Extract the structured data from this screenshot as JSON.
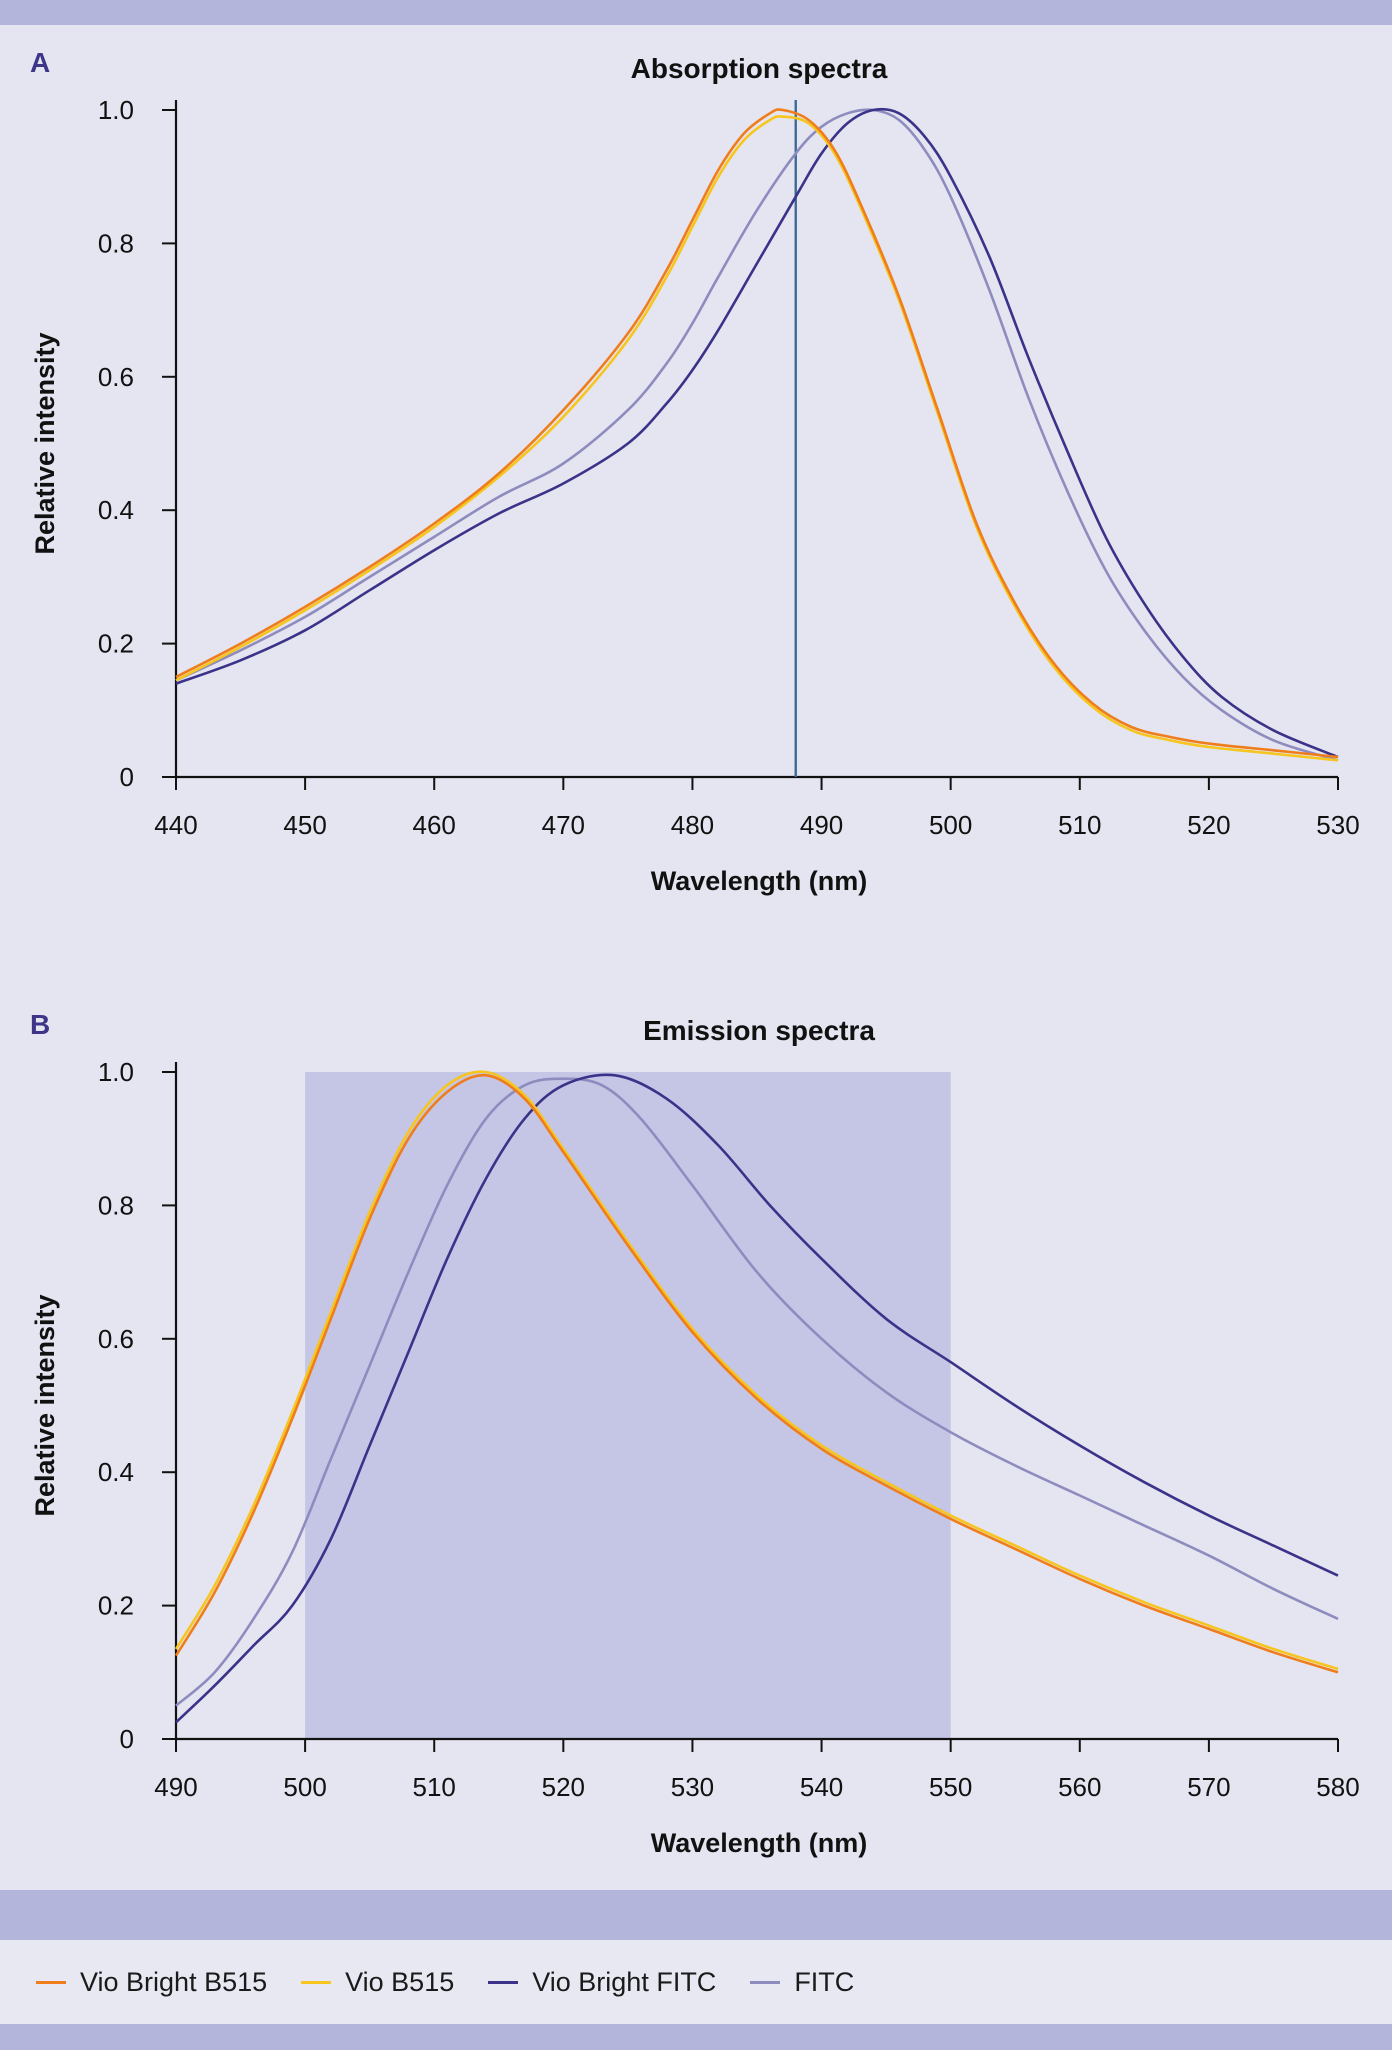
{
  "colors": {
    "vio_bright_b515": "#f07d1c",
    "vio_b515": "#f6c51e",
    "vio_bright_fitc": "#3a3389",
    "fitc": "#8e8cbf",
    "laser_line": "#3c6a98",
    "filter_band": "#c5c6e5"
  },
  "legend": [
    {
      "label": "Vio Bright B515",
      "color_key": "vio_bright_b515"
    },
    {
      "label": "Vio B515",
      "color_key": "vio_b515"
    },
    {
      "label": "Vio Bright FITC",
      "color_key": "vio_bright_fitc"
    },
    {
      "label": "FITC",
      "color_key": "fitc"
    }
  ],
  "chart_data": [
    {
      "panel": "A",
      "type": "line",
      "title": "Absorption spectra",
      "xlabel": "Wavelength (nm)",
      "ylabel": "Relative intensity",
      "xlim": [
        440,
        530
      ],
      "ylim": [
        0,
        1.0
      ],
      "xticks": [
        "440",
        "450",
        "460",
        "470",
        "480",
        "490",
        "500",
        "510",
        "520",
        "530"
      ],
      "yticks": [
        "0",
        "0.2",
        "0.4",
        "0.6",
        "0.8",
        "1.0"
      ],
      "grid": false,
      "annotations": [
        {
          "type": "vline",
          "x": 488
        }
      ],
      "series": [
        {
          "name": "Vio Bright B515",
          "color_key": "vio_bright_b515",
          "x": [
            440,
            445,
            450,
            455,
            460,
            465,
            470,
            475,
            478,
            480,
            482,
            484,
            486,
            487,
            489,
            491,
            493,
            496,
            499,
            502,
            505,
            508,
            511,
            514,
            517,
            520,
            525,
            530
          ],
          "y": [
            0.15,
            0.2,
            0.255,
            0.315,
            0.38,
            0.455,
            0.55,
            0.665,
            0.76,
            0.835,
            0.91,
            0.965,
            0.995,
            1.0,
            0.985,
            0.94,
            0.86,
            0.72,
            0.55,
            0.38,
            0.26,
            0.17,
            0.11,
            0.075,
            0.06,
            0.05,
            0.04,
            0.03
          ]
        },
        {
          "name": "Vio B515",
          "color_key": "vio_b515",
          "x": [
            440,
            445,
            450,
            455,
            460,
            465,
            470,
            475,
            478,
            480,
            482,
            484,
            486,
            487,
            489,
            491,
            493,
            496,
            499,
            502,
            505,
            508,
            511,
            514,
            517,
            520,
            525,
            530
          ],
          "y": [
            0.145,
            0.195,
            0.25,
            0.31,
            0.375,
            0.45,
            0.54,
            0.655,
            0.75,
            0.825,
            0.9,
            0.955,
            0.985,
            0.99,
            0.98,
            0.935,
            0.855,
            0.715,
            0.545,
            0.375,
            0.255,
            0.165,
            0.105,
            0.07,
            0.055,
            0.045,
            0.035,
            0.025
          ]
        },
        {
          "name": "Vio Bright FITC",
          "color_key": "vio_bright_fitc",
          "x": [
            440,
            445,
            450,
            455,
            460,
            465,
            470,
            475,
            478,
            480,
            482,
            485,
            488,
            490,
            492,
            494,
            496,
            498,
            500,
            503,
            506,
            509,
            512,
            515,
            518,
            521,
            525,
            530
          ],
          "y": [
            0.14,
            0.175,
            0.22,
            0.28,
            0.34,
            0.395,
            0.44,
            0.5,
            0.56,
            0.61,
            0.67,
            0.77,
            0.87,
            0.935,
            0.98,
            1.0,
            0.995,
            0.96,
            0.9,
            0.78,
            0.63,
            0.49,
            0.36,
            0.26,
            0.18,
            0.12,
            0.07,
            0.03
          ]
        },
        {
          "name": "FITC",
          "color_key": "fitc",
          "x": [
            440,
            445,
            450,
            455,
            460,
            465,
            470,
            475,
            478,
            480,
            482,
            485,
            488,
            490,
            492,
            494,
            496,
            498,
            500,
            503,
            506,
            509,
            512,
            515,
            518,
            521,
            525,
            530
          ],
          "y": [
            0.145,
            0.19,
            0.24,
            0.3,
            0.36,
            0.42,
            0.47,
            0.55,
            0.62,
            0.68,
            0.75,
            0.85,
            0.935,
            0.975,
            0.995,
            1.0,
            0.985,
            0.94,
            0.87,
            0.73,
            0.57,
            0.43,
            0.31,
            0.22,
            0.15,
            0.1,
            0.055,
            0.025
          ]
        }
      ]
    },
    {
      "panel": "B",
      "type": "line",
      "title": "Emission spectra",
      "xlabel": "Wavelength (nm)",
      "ylabel": "Relative intensity",
      "xlim": [
        490,
        580
      ],
      "ylim": [
        0,
        1.0
      ],
      "xticks": [
        "490",
        "500",
        "510",
        "520",
        "530",
        "540",
        "550",
        "560",
        "570",
        "580"
      ],
      "yticks": [
        "0",
        "0.2",
        "0.4",
        "0.6",
        "0.8",
        "1.0"
      ],
      "grid": false,
      "annotations": [
        {
          "type": "band",
          "x": [
            500,
            550
          ]
        }
      ],
      "series": [
        {
          "name": "Vio Bright B515",
          "color_key": "vio_bright_b515",
          "x": [
            490,
            493,
            496,
            499,
            502,
            505,
            508,
            511,
            514,
            517,
            520,
            525,
            530,
            535,
            540,
            545,
            550,
            555,
            560,
            565,
            570,
            575,
            580
          ],
          "y": [
            0.125,
            0.22,
            0.34,
            0.48,
            0.63,
            0.78,
            0.9,
            0.97,
            0.995,
            0.96,
            0.88,
            0.74,
            0.61,
            0.51,
            0.435,
            0.38,
            0.33,
            0.285,
            0.24,
            0.2,
            0.165,
            0.13,
            0.1
          ]
        },
        {
          "name": "Vio B515",
          "color_key": "vio_b515",
          "x": [
            490,
            493,
            496,
            499,
            502,
            505,
            508,
            511,
            514,
            517,
            520,
            525,
            530,
            535,
            540,
            545,
            550,
            555,
            560,
            565,
            570,
            575,
            580
          ],
          "y": [
            0.135,
            0.23,
            0.35,
            0.49,
            0.64,
            0.79,
            0.91,
            0.98,
            1.0,
            0.965,
            0.885,
            0.745,
            0.615,
            0.515,
            0.44,
            0.385,
            0.335,
            0.29,
            0.245,
            0.205,
            0.17,
            0.135,
            0.105
          ]
        },
        {
          "name": "Vio Bright FITC",
          "color_key": "vio_bright_fitc",
          "x": [
            490,
            493,
            496,
            499,
            502,
            505,
            508,
            511,
            514,
            517,
            520,
            524,
            528,
            532,
            536,
            540,
            545,
            550,
            555,
            560,
            565,
            570,
            575,
            580
          ],
          "y": [
            0.025,
            0.08,
            0.14,
            0.2,
            0.3,
            0.44,
            0.58,
            0.72,
            0.84,
            0.93,
            0.98,
            0.995,
            0.96,
            0.89,
            0.8,
            0.72,
            0.63,
            0.565,
            0.5,
            0.44,
            0.385,
            0.335,
            0.29,
            0.245
          ]
        },
        {
          "name": "FITC",
          "color_key": "fitc",
          "x": [
            490,
            493,
            496,
            499,
            502,
            505,
            508,
            511,
            514,
            517,
            520,
            523,
            526,
            530,
            535,
            540,
            545,
            550,
            555,
            560,
            565,
            570,
            575,
            580
          ],
          "y": [
            0.05,
            0.1,
            0.18,
            0.28,
            0.42,
            0.56,
            0.7,
            0.83,
            0.93,
            0.98,
            0.99,
            0.98,
            0.93,
            0.83,
            0.7,
            0.6,
            0.52,
            0.46,
            0.41,
            0.365,
            0.32,
            0.275,
            0.225,
            0.18
          ]
        }
      ]
    }
  ]
}
